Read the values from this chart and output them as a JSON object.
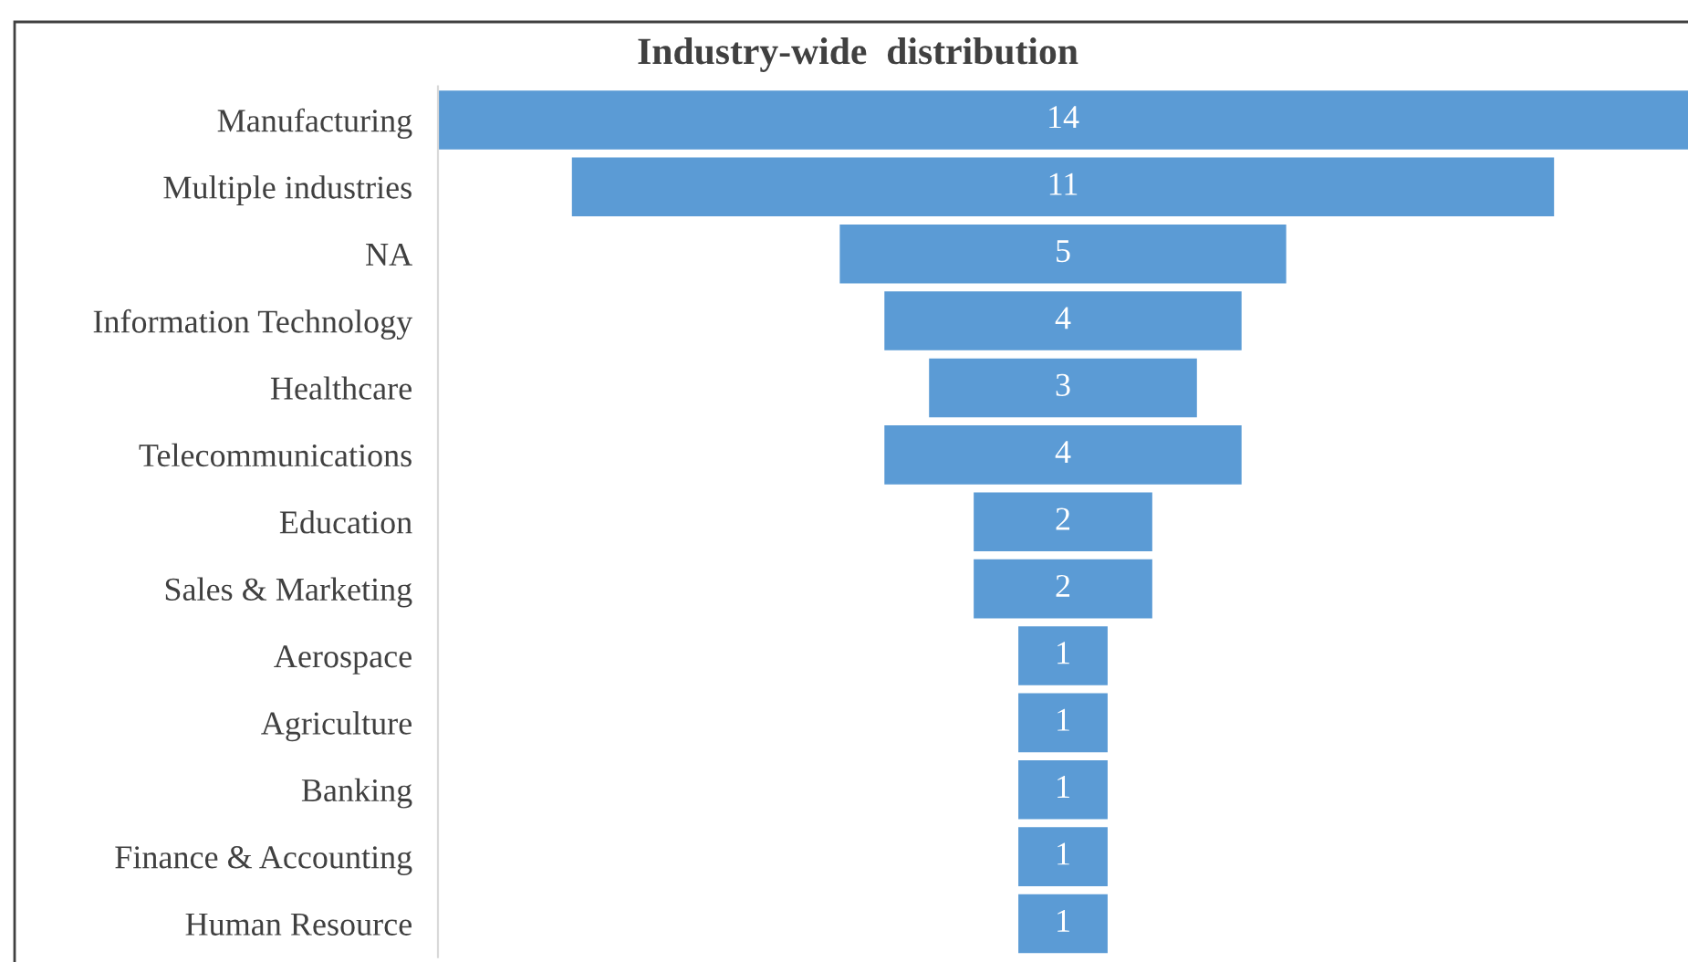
{
  "chart_data": {
    "type": "other",
    "title": "Industry-wide  distribution",
    "categories": [
      "Manufacturing",
      "Multiple industries",
      "NA",
      "Information Technology",
      "Healthcare",
      "Telecommunications",
      "Education",
      "Sales & Marketing",
      "Aerospace",
      "Agriculture",
      "Banking",
      "Finance & Accounting",
      "Human Resource"
    ],
    "values": [
      14,
      11,
      5,
      4,
      3,
      4,
      2,
      2,
      1,
      1,
      1,
      1,
      1
    ],
    "color": "#5b9bd5",
    "data_labels": true
  }
}
